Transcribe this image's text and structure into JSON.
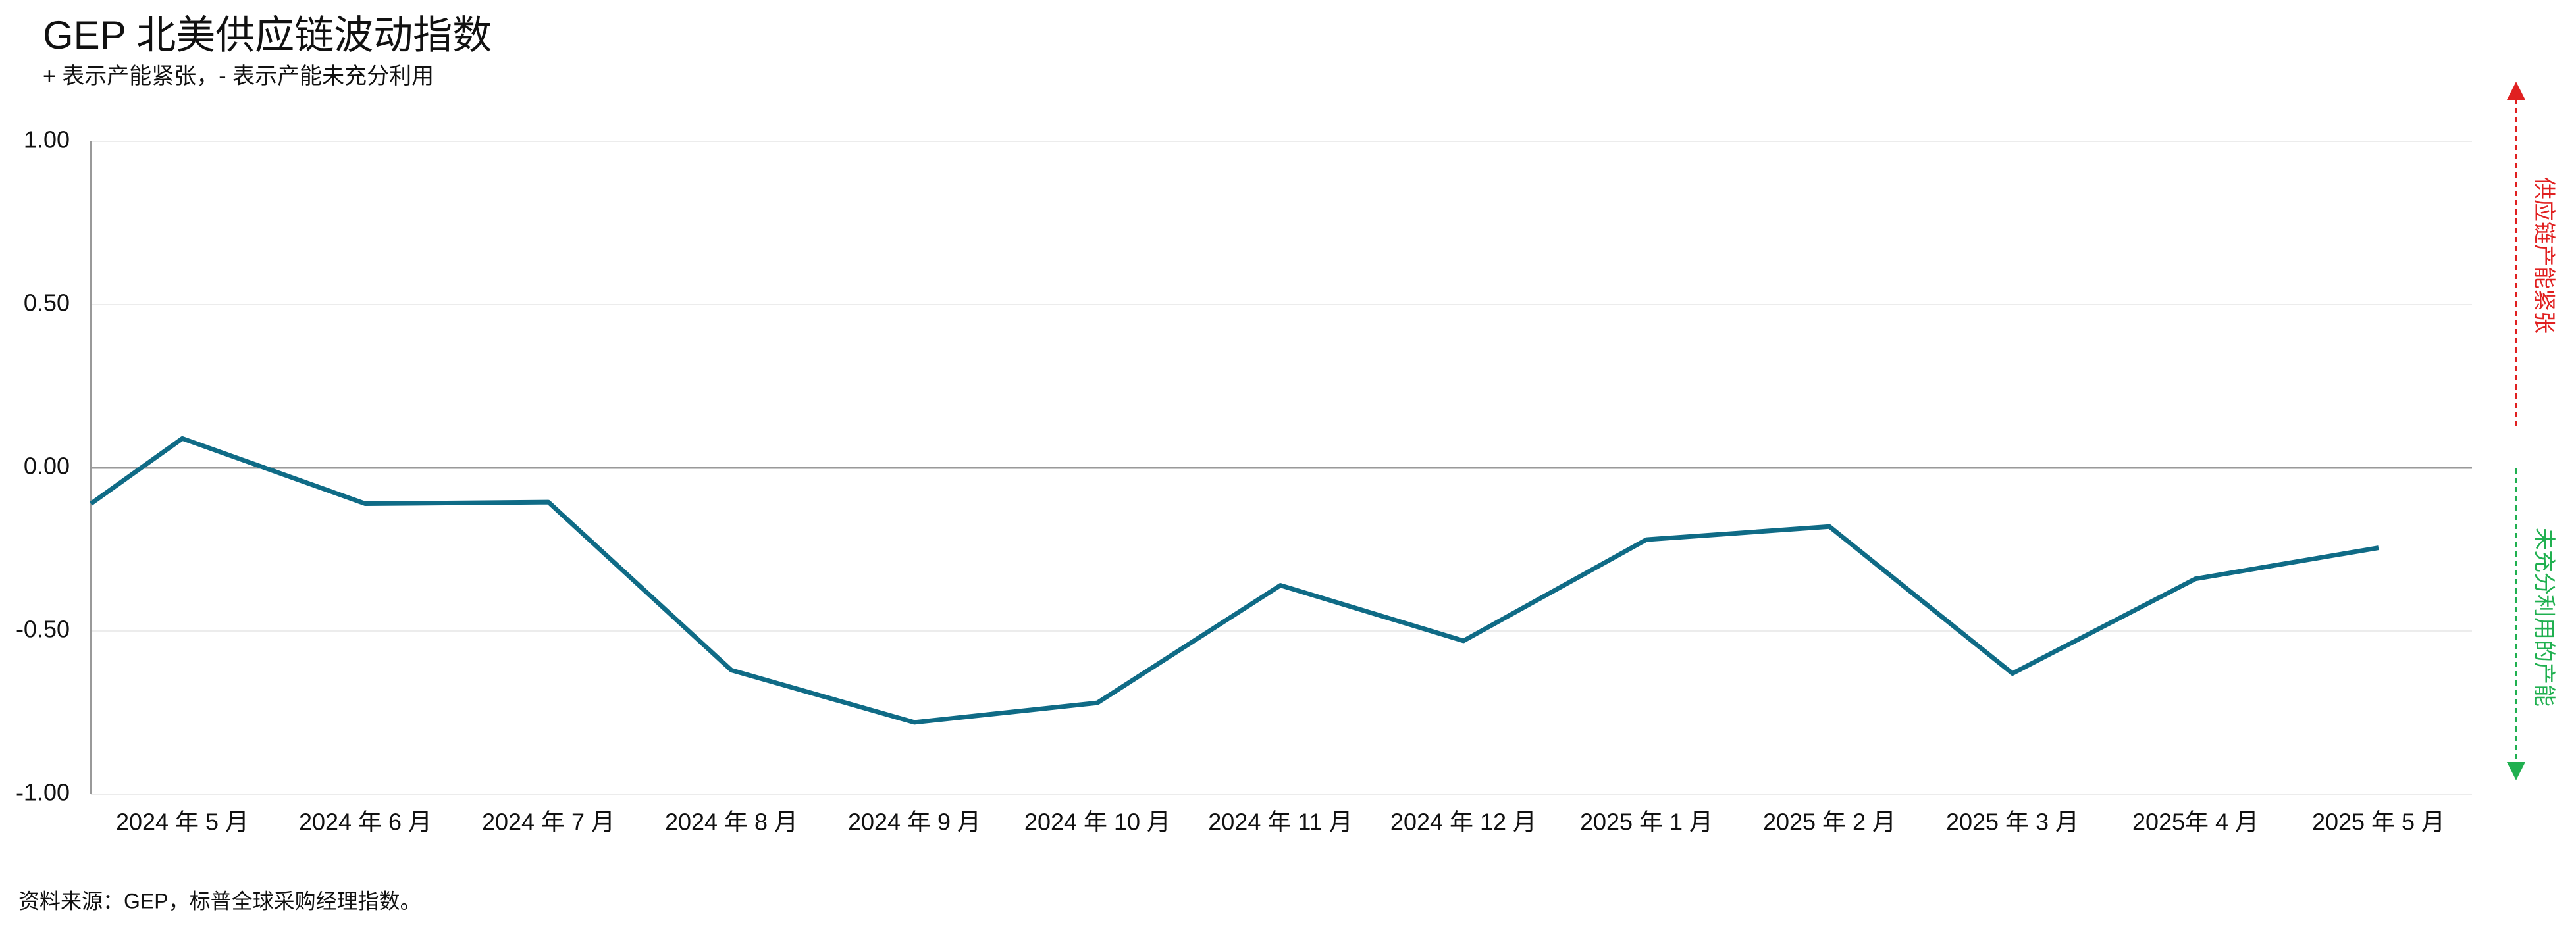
{
  "chart_data": {
    "type": "line",
    "title": "GEP 北美供应链波动指数",
    "subtitle": "+ 表示产能紧张，- 表示产能未充分利用",
    "source": "资料来源：GEP，标普全球采购经理指数。",
    "annotations": [
      "供应链产能紧张",
      "未充分利用的产能"
    ],
    "categories": [
      null,
      "2024 年 5 月",
      "2024 年 6 月",
      "2024 年 7 月",
      "2024 年 8 月",
      "2024 年 9 月",
      "2024 年 10 月",
      "2024 年 11 月",
      "2024 年 12 月",
      "2025 年 1 月",
      "2025 年 2 月",
      "2025 年 3 月",
      "2025年 4 月",
      "2025 年 5 月"
    ],
    "values": [
      -0.11,
      0.09,
      -0.11,
      -0.105,
      -0.62,
      -0.78,
      -0.72,
      -0.36,
      -0.53,
      -0.22,
      -0.18,
      -0.63,
      -0.34,
      -0.245
    ],
    "color": "#0f6b86",
    "ylim": [
      -1,
      1
    ],
    "yticks": [
      {
        "value": 1,
        "label": "1.00"
      },
      {
        "value": 0.5,
        "label": "0.50"
      },
      {
        "value": 0,
        "label": "0.00"
      },
      {
        "value": -0.5,
        "label": "-0.50"
      },
      {
        "value": -1,
        "label": "-1.00"
      }
    ],
    "grid": true
  }
}
